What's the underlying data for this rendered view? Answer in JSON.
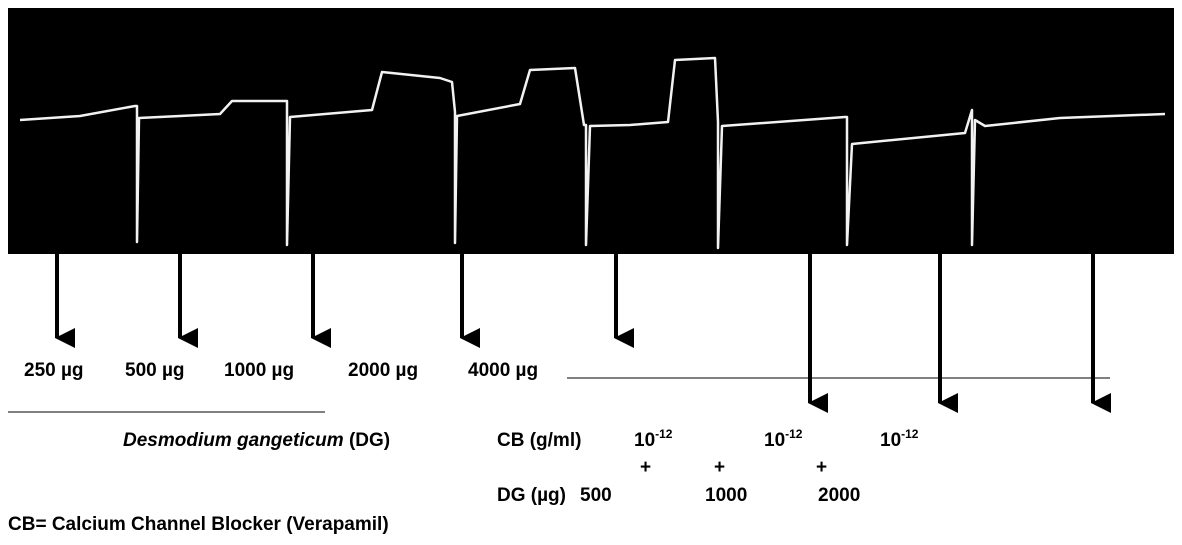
{
  "doses": [
    "250 µg",
    "500 µg",
    "1000 µg",
    "2000 µg",
    "4000 µg"
  ],
  "extract": {
    "name": "Desmodium gangeticum",
    "abbr": "(DG)"
  },
  "combination": {
    "cb_label": "CB (g/ml)",
    "cb_doses": [
      {
        "base": "10",
        "exp": "-12"
      },
      {
        "base": "10",
        "exp": "-12"
      },
      {
        "base": "10",
        "exp": "-12"
      }
    ],
    "plus": [
      "+",
      "+",
      "+"
    ],
    "dg_label": "DG (µg)",
    "dg_doses": [
      "500",
      "1000",
      "2000"
    ]
  },
  "footnote": "CB= Calcium Channel Blocker (Verapamil)"
}
